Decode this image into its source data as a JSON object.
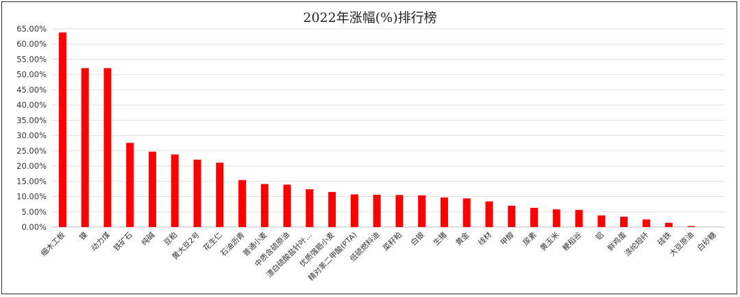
{
  "chart_data": {
    "type": "bar",
    "title": "2022年涨幅(%)排行榜",
    "xlabel": "",
    "ylabel": "",
    "ylim": [
      0,
      65
    ],
    "y_ticks": [
      "0.00%",
      "5.00%",
      "10.00%",
      "15.00%",
      "20.00%",
      "25.00%",
      "30.00%",
      "35.00%",
      "40.00%",
      "45.00%",
      "50.00%",
      "55.00%",
      "60.00%",
      "65.00%"
    ],
    "grid": true,
    "legend": "none",
    "bar_color": "#ff0000",
    "categories": [
      "细木工板",
      "镍",
      "动力煤",
      "铁矿石",
      "纯碱",
      "豆粕",
      "黄大豆2号",
      "花生仁",
      "石油沥青",
      "普通小麦",
      "中质含硫原油",
      "漂白硫酸盐针叶…",
      "优质强筋小麦",
      "精对苯二甲酸(PTA)",
      "低硫燃料油",
      "菜籽粕",
      "白银",
      "生猪",
      "黄金",
      "线材",
      "甲醇",
      "尿素",
      "黄玉米",
      "粳稻谷",
      "铝",
      "鲜鸡蛋",
      "涤纶短纤",
      "硅铁",
      "大豆原油",
      "白砂糖"
    ],
    "values": [
      63.8,
      52.1,
      52.1,
      27.6,
      24.7,
      23.8,
      22.1,
      21.1,
      15.4,
      14.1,
      13.9,
      12.4,
      11.5,
      10.7,
      10.6,
      10.5,
      10.4,
      9.7,
      9.4,
      8.4,
      7.0,
      6.3,
      5.8,
      5.6,
      3.8,
      3.4,
      2.5,
      1.4,
      0.3,
      0.0
    ]
  }
}
